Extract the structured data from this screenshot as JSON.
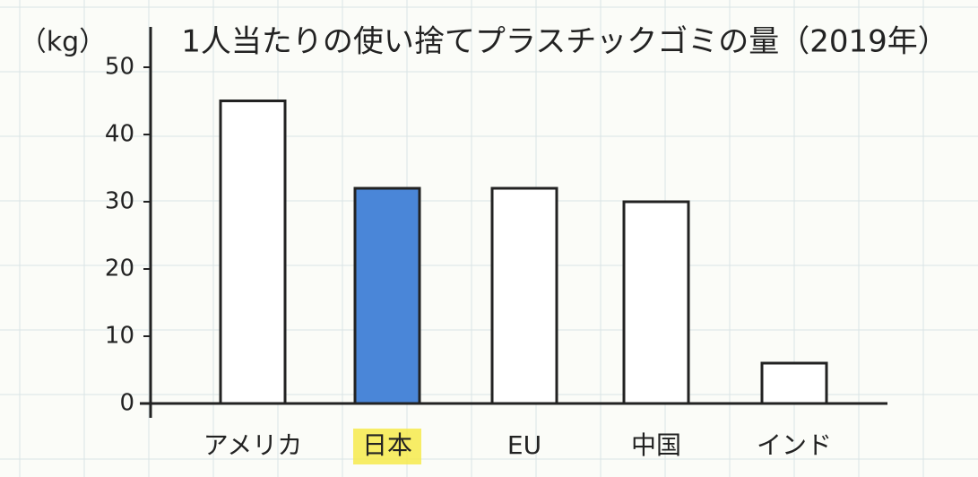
{
  "chart_data": {
    "type": "bar",
    "title": "1人当たりの使い捨てプラスチックゴミの量（2019年）",
    "y_label": "（kg）",
    "categories": [
      "アメリカ",
      "日本",
      "EU",
      "中国",
      "インド"
    ],
    "values": [
      45,
      32,
      32,
      30,
      6
    ],
    "colors": [
      "#ffffff",
      "#4a86d8",
      "#ffffff",
      "#ffffff",
      "#ffffff"
    ],
    "label_highlight": {
      "index": 1,
      "color": "#f6ea4c"
    },
    "ylim": [
      0,
      50
    ],
    "yticks": [
      0,
      10,
      20,
      30,
      40,
      50
    ]
  }
}
